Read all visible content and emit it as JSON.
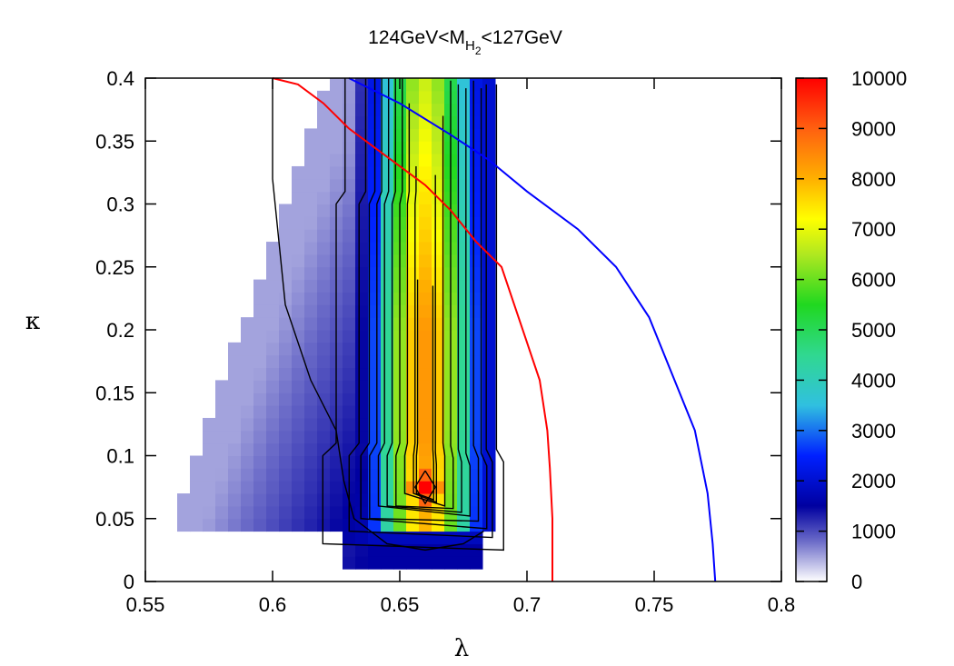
{
  "chart_data": {
    "type": "heatmap",
    "title": {
      "prefix": "124GeV<M",
      "sub1": "H",
      "sub2": "2",
      "suffix": "<127GeV"
    },
    "xlabel": "λ",
    "ylabel": "κ",
    "xlim": [
      0.55,
      0.8
    ],
    "ylim": [
      0,
      0.4
    ],
    "xticks": [
      0.55,
      0.6,
      0.65,
      0.7,
      0.75,
      0.8
    ],
    "xtick_labels": [
      "0.55",
      "0.6",
      "0.65",
      "0.7",
      "0.75",
      "0.8"
    ],
    "yticks": [
      0,
      0.05,
      0.1,
      0.15,
      0.2,
      0.25,
      0.3,
      0.35,
      0.4
    ],
    "ytick_labels": [
      "0",
      "0.05",
      "0.1",
      "0.15",
      "0.2",
      "0.25",
      "0.3",
      "0.35",
      "0.4"
    ],
    "grid": false,
    "colorbar": {
      "range": [
        0,
        10000
      ],
      "ticks": [
        0,
        1000,
        2000,
        3000,
        4000,
        5000,
        6000,
        7000,
        8000,
        9000,
        10000
      ],
      "tick_labels": [
        "0",
        "1000",
        "2000",
        "3000",
        "4000",
        "5000",
        "6000",
        "7000",
        "8000",
        "9000",
        "10000"
      ],
      "stops": [
        [
          0.0,
          "#ffffff"
        ],
        [
          0.08,
          "#6b6bc8"
        ],
        [
          0.15,
          "#0000a0"
        ],
        [
          0.25,
          "#0020ff"
        ],
        [
          0.35,
          "#30c0e0"
        ],
        [
          0.45,
          "#30d890"
        ],
        [
          0.55,
          "#20d820"
        ],
        [
          0.65,
          "#b0e820"
        ],
        [
          0.72,
          "#ffff00"
        ],
        [
          0.8,
          "#ffb000"
        ],
        [
          0.9,
          "#ff6010"
        ],
        [
          1.0,
          "#ff0000"
        ]
      ]
    },
    "grid_cells": {
      "x0": 0.555,
      "dx": 0.005,
      "y0": 0.0,
      "dy": 0.01,
      "columns": 27,
      "rows": 40
    },
    "z_units": "counts",
    "lines": [
      {
        "color": "#ff0000",
        "points": [
          [
            0.6,
            0.4
          ],
          [
            0.61,
            0.395
          ],
          [
            0.62,
            0.38
          ],
          [
            0.63,
            0.36
          ],
          [
            0.64,
            0.345
          ],
          [
            0.65,
            0.33
          ],
          [
            0.66,
            0.315
          ],
          [
            0.67,
            0.295
          ],
          [
            0.68,
            0.27
          ],
          [
            0.69,
            0.25
          ],
          [
            0.695,
            0.22
          ],
          [
            0.7,
            0.19
          ],
          [
            0.705,
            0.16
          ],
          [
            0.708,
            0.12
          ],
          [
            0.709,
            0.09
          ],
          [
            0.71,
            0.05
          ],
          [
            0.71,
            0.0
          ]
        ]
      },
      {
        "color": "#0000ff",
        "points": [
          [
            0.63,
            0.4
          ],
          [
            0.65,
            0.38
          ],
          [
            0.67,
            0.355
          ],
          [
            0.685,
            0.335
          ],
          [
            0.7,
            0.31
          ],
          [
            0.72,
            0.28
          ],
          [
            0.735,
            0.25
          ],
          [
            0.748,
            0.21
          ],
          [
            0.758,
            0.16
          ],
          [
            0.766,
            0.12
          ],
          [
            0.771,
            0.07
          ],
          [
            0.773,
            0.03
          ],
          [
            0.774,
            0.0
          ]
        ]
      }
    ]
  }
}
